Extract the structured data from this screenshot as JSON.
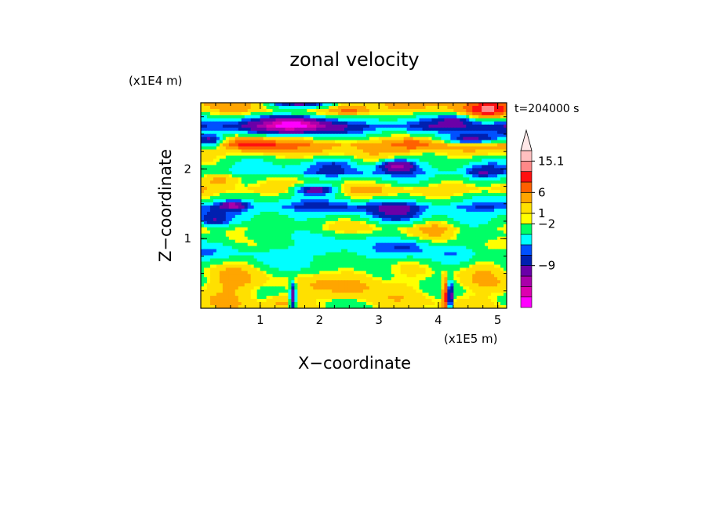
{
  "chart_data": {
    "type": "heatmap",
    "title": "zonal velocity",
    "xlabel": "X−coordinate",
    "ylabel": "Z−coordinate",
    "x_multiplier": "(x1E5 m)",
    "y_multiplier": "(x1E4 m)",
    "time_label": "t=204000 s",
    "xlim": [
      0,
      5.15
    ],
    "ylim": [
      0,
      2.95
    ],
    "x_ticks": [
      1,
      2,
      3,
      4,
      5
    ],
    "x_tick_labels": [
      "1",
      "2",
      "3",
      "4",
      "5"
    ],
    "y_ticks": [
      1,
      2
    ],
    "y_tick_labels": [
      "1",
      "2"
    ],
    "colorbar": {
      "max_label": "15.1",
      "labels": [
        {
          "text": "15.1",
          "level": 14
        },
        {
          "text": "6",
          "level": 11
        },
        {
          "text": "1",
          "level": 9
        },
        {
          "text": "−2",
          "level": 8
        },
        {
          "text": "−9",
          "level": 4
        }
      ],
      "colors": [
        "#ff00ff",
        "#dd00b0",
        "#aa00aa",
        "#6a00a8",
        "#0020b0",
        "#0050ff",
        "#00ffff",
        "#00ff66",
        "#ffff00",
        "#ffe000",
        "#ffa500",
        "#ff6000",
        "#ff1010",
        "#ff8888",
        "#ffc0c0"
      ]
    },
    "bands": [
      {
        "z": 0.35,
        "value": 1.5
      },
      {
        "z": 0.8,
        "value": -1
      },
      {
        "z": 1.15,
        "value": 1.5
      },
      {
        "z": 1.45,
        "value": -3
      },
      {
        "z": 1.7,
        "value": 3
      },
      {
        "z": 1.95,
        "value": -2
      },
      {
        "z": 2.35,
        "value": 4
      },
      {
        "z": 2.6,
        "value": -4
      },
      {
        "z": 2.85,
        "value": 3
      }
    ],
    "blobs": [
      {
        "x": 1.6,
        "z": 2.65,
        "amplitude": -9,
        "sx": 0.55,
        "sz": 0.12
      },
      {
        "x": 0.15,
        "z": 2.4,
        "amplitude": -8,
        "sx": 0.25,
        "sz": 0.1
      },
      {
        "x": 4.55,
        "z": 2.42,
        "amplitude": -8,
        "sx": 0.45,
        "sz": 0.08
      },
      {
        "x": 3.3,
        "z": 2.05,
        "amplitude": -8,
        "sx": 0.3,
        "sz": 0.08
      },
      {
        "x": 1.95,
        "z": 1.7,
        "amplitude": -8,
        "sx": 0.4,
        "sz": 0.07
      },
      {
        "x": 0.55,
        "z": 1.48,
        "amplitude": -6,
        "sx": 0.2,
        "sz": 0.06
      },
      {
        "x": 1.7,
        "z": 2.95,
        "amplitude": -8,
        "sx": 0.6,
        "sz": 0.1
      },
      {
        "x": 4.85,
        "z": 2.85,
        "amplitude": 6,
        "sx": 0.35,
        "sz": 0.12
      },
      {
        "x": 2.5,
        "z": 2.85,
        "amplitude": 5,
        "sx": 0.3,
        "sz": 0.08
      },
      {
        "x": 4.3,
        "z": 2.7,
        "amplitude": -3,
        "sx": 0.3,
        "sz": 0.08
      },
      {
        "x": 0.9,
        "z": 2.35,
        "amplitude": 5,
        "sx": 0.4,
        "sz": 0.1
      },
      {
        "x": 3.6,
        "z": 2.35,
        "amplitude": 4,
        "sx": 0.35,
        "sz": 0.1
      },
      {
        "x": 2.3,
        "z": 2.1,
        "amplitude": -2,
        "sx": 0.4,
        "sz": 0.1
      },
      {
        "x": 4.7,
        "z": 1.95,
        "amplitude": -3,
        "sx": 0.3,
        "sz": 0.12
      },
      {
        "x": 0.2,
        "z": 1.25,
        "amplitude": -3,
        "sx": 0.25,
        "sz": 0.08
      },
      {
        "x": 0.35,
        "z": 1.85,
        "amplitude": 4,
        "sx": 0.35,
        "sz": 0.1
      },
      {
        "x": 3.3,
        "z": 1.35,
        "amplitude": -2,
        "sx": 0.35,
        "sz": 0.2
      },
      {
        "x": 2.1,
        "z": 0.9,
        "amplitude": -2,
        "sx": 0.35,
        "sz": 0.15
      },
      {
        "x": 3.5,
        "z": 0.9,
        "amplitude": -2.5,
        "sx": 0.35,
        "sz": 0.12
      },
      {
        "x": 4.7,
        "z": 0.6,
        "amplitude": 2,
        "sx": 0.35,
        "sz": 0.25
      },
      {
        "x": 0.5,
        "z": 0.4,
        "amplitude": 2,
        "sx": 0.45,
        "sz": 0.3
      },
      {
        "x": 2.6,
        "z": 0.4,
        "amplitude": 3,
        "sx": 0.4,
        "sz": 0.2
      },
      {
        "x": 1.35,
        "z": 0.1,
        "amplitude": 2.5,
        "sx": 0.25,
        "sz": 0.1
      },
      {
        "x": 1.55,
        "z": 0.15,
        "amplitude": -8,
        "sx": 0.05,
        "sz": 0.22
      },
      {
        "x": 4.2,
        "z": 0.15,
        "amplitude": -8,
        "sx": 0.05,
        "sz": 0.22
      },
      {
        "x": 4.12,
        "z": 0.2,
        "amplitude": 8,
        "sx": 0.05,
        "sz": 0.22
      },
      {
        "x": 4.0,
        "z": 1.15,
        "amplitude": 2,
        "sx": 0.3,
        "sz": 0.15
      },
      {
        "x": 1.0,
        "z": 1.05,
        "amplitude": -2,
        "sx": 0.3,
        "sz": 0.1
      }
    ]
  }
}
